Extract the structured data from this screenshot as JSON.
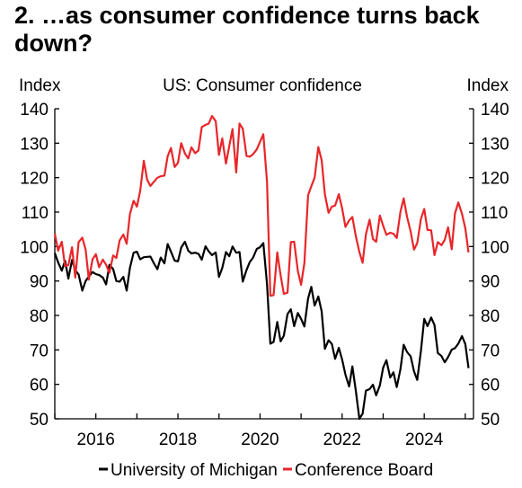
{
  "title": "2. …as consumer confidence turns back down?",
  "chart_data": {
    "type": "line",
    "title": "US: Consumer confidence",
    "ylabel_left": "Index",
    "ylabel_right": "Index",
    "xlim": [
      2015.0,
      2025.2
    ],
    "ylim": [
      50,
      140
    ],
    "yticks": [
      50,
      60,
      70,
      80,
      90,
      100,
      110,
      120,
      130,
      140
    ],
    "xticks": [
      2016,
      2018,
      2020,
      2022,
      2024
    ],
    "grid": false,
    "legend_position": "bottom",
    "series": [
      {
        "name": "University of Michigan",
        "color": "#000000",
        "points": [
          [
            2015.0,
            98.1
          ],
          [
            2015.08,
            95.4
          ],
          [
            2015.17,
            93.0
          ],
          [
            2015.25,
            95.9
          ],
          [
            2015.33,
            90.7
          ],
          [
            2015.42,
            96.1
          ],
          [
            2015.5,
            93.1
          ],
          [
            2015.58,
            91.9
          ],
          [
            2015.67,
            87.2
          ],
          [
            2015.75,
            90.0
          ],
          [
            2015.83,
            91.3
          ],
          [
            2015.92,
            92.6
          ],
          [
            2016.0,
            92.0
          ],
          [
            2016.08,
            91.7
          ],
          [
            2016.17,
            91.0
          ],
          [
            2016.25,
            89.0
          ],
          [
            2016.33,
            94.7
          ],
          [
            2016.42,
            93.5
          ],
          [
            2016.5,
            90.0
          ],
          [
            2016.58,
            89.8
          ],
          [
            2016.67,
            91.2
          ],
          [
            2016.75,
            87.2
          ],
          [
            2016.83,
            93.8
          ],
          [
            2016.92,
            98.2
          ],
          [
            2017.0,
            98.5
          ],
          [
            2017.08,
            96.3
          ],
          [
            2017.17,
            96.9
          ],
          [
            2017.25,
            97.0
          ],
          [
            2017.33,
            97.1
          ],
          [
            2017.42,
            95.0
          ],
          [
            2017.5,
            93.4
          ],
          [
            2017.58,
            96.8
          ],
          [
            2017.67,
            95.1
          ],
          [
            2017.75,
            100.7
          ],
          [
            2017.83,
            98.5
          ],
          [
            2017.92,
            95.9
          ],
          [
            2018.0,
            95.7
          ],
          [
            2018.08,
            99.7
          ],
          [
            2018.17,
            101.4
          ],
          [
            2018.25,
            98.8
          ],
          [
            2018.33,
            98.0
          ],
          [
            2018.42,
            98.2
          ],
          [
            2018.5,
            97.9
          ],
          [
            2018.58,
            96.2
          ],
          [
            2018.67,
            100.1
          ],
          [
            2018.75,
            98.6
          ],
          [
            2018.83,
            97.5
          ],
          [
            2018.92,
            98.3
          ],
          [
            2019.0,
            91.2
          ],
          [
            2019.08,
            93.8
          ],
          [
            2019.17,
            98.4
          ],
          [
            2019.25,
            97.2
          ],
          [
            2019.33,
            100.0
          ],
          [
            2019.42,
            98.2
          ],
          [
            2019.5,
            98.4
          ],
          [
            2019.58,
            89.8
          ],
          [
            2019.67,
            93.2
          ],
          [
            2019.75,
            95.5
          ],
          [
            2019.83,
            96.8
          ],
          [
            2019.92,
            99.3
          ],
          [
            2020.0,
            99.8
          ],
          [
            2020.08,
            101.0
          ],
          [
            2020.17,
            89.1
          ],
          [
            2020.25,
            71.8
          ],
          [
            2020.33,
            72.3
          ],
          [
            2020.42,
            78.1
          ],
          [
            2020.5,
            72.5
          ],
          [
            2020.58,
            74.1
          ],
          [
            2020.67,
            80.4
          ],
          [
            2020.75,
            81.8
          ],
          [
            2020.83,
            76.9
          ],
          [
            2020.92,
            80.7
          ],
          [
            2021.0,
            79.0
          ],
          [
            2021.08,
            76.8
          ],
          [
            2021.17,
            84.9
          ],
          [
            2021.25,
            88.3
          ],
          [
            2021.33,
            82.9
          ],
          [
            2021.42,
            85.5
          ],
          [
            2021.5,
            81.2
          ],
          [
            2021.58,
            70.3
          ],
          [
            2021.67,
            72.8
          ],
          [
            2021.75,
            71.7
          ],
          [
            2021.83,
            67.4
          ],
          [
            2021.92,
            70.6
          ],
          [
            2022.0,
            67.2
          ],
          [
            2022.08,
            62.8
          ],
          [
            2022.17,
            59.4
          ],
          [
            2022.25,
            65.2
          ],
          [
            2022.33,
            58.4
          ],
          [
            2022.42,
            50.0
          ],
          [
            2022.5,
            51.5
          ],
          [
            2022.58,
            58.2
          ],
          [
            2022.67,
            58.6
          ],
          [
            2022.75,
            59.9
          ],
          [
            2022.83,
            56.8
          ],
          [
            2022.92,
            59.7
          ],
          [
            2023.0,
            64.9
          ],
          [
            2023.08,
            67.0
          ],
          [
            2023.17,
            62.0
          ],
          [
            2023.25,
            63.5
          ],
          [
            2023.33,
            59.2
          ],
          [
            2023.42,
            64.4
          ],
          [
            2023.5,
            71.5
          ],
          [
            2023.58,
            69.4
          ],
          [
            2023.67,
            68.1
          ],
          [
            2023.75,
            63.8
          ],
          [
            2023.83,
            61.3
          ],
          [
            2023.92,
            69.7
          ],
          [
            2024.0,
            79.0
          ],
          [
            2024.08,
            76.9
          ],
          [
            2024.17,
            79.4
          ],
          [
            2024.25,
            77.2
          ],
          [
            2024.33,
            69.1
          ],
          [
            2024.42,
            68.2
          ],
          [
            2024.5,
            66.4
          ],
          [
            2024.58,
            67.9
          ],
          [
            2024.67,
            70.1
          ],
          [
            2024.75,
            70.5
          ],
          [
            2024.83,
            71.8
          ],
          [
            2024.92,
            74.0
          ],
          [
            2025.0,
            71.7
          ],
          [
            2025.08,
            64.7
          ]
        ]
      },
      {
        "name": "Conference Board",
        "color": "#e8262a",
        "points": [
          [
            2015.0,
            103.8
          ],
          [
            2015.08,
            98.8
          ],
          [
            2015.17,
            101.4
          ],
          [
            2015.25,
            94.3
          ],
          [
            2015.33,
            94.6
          ],
          [
            2015.42,
            99.8
          ],
          [
            2015.5,
            91.0
          ],
          [
            2015.58,
            101.3
          ],
          [
            2015.67,
            102.6
          ],
          [
            2015.75,
            99.1
          ],
          [
            2015.83,
            90.4
          ],
          [
            2015.92,
            96.3
          ],
          [
            2016.0,
            97.8
          ],
          [
            2016.08,
            94.0
          ],
          [
            2016.17,
            96.2
          ],
          [
            2016.25,
            94.7
          ],
          [
            2016.33,
            92.4
          ],
          [
            2016.42,
            97.4
          ],
          [
            2016.5,
            96.7
          ],
          [
            2016.58,
            101.8
          ],
          [
            2016.67,
            103.5
          ],
          [
            2016.75,
            100.8
          ],
          [
            2016.83,
            109.4
          ],
          [
            2016.92,
            113.3
          ],
          [
            2017.0,
            111.6
          ],
          [
            2017.08,
            116.1
          ],
          [
            2017.17,
            124.9
          ],
          [
            2017.25,
            119.4
          ],
          [
            2017.33,
            117.6
          ],
          [
            2017.42,
            118.9
          ],
          [
            2017.5,
            120.0
          ],
          [
            2017.58,
            120.4
          ],
          [
            2017.67,
            120.6
          ],
          [
            2017.75,
            126.2
          ],
          [
            2017.83,
            128.6
          ],
          [
            2017.92,
            123.1
          ],
          [
            2018.0,
            124.3
          ],
          [
            2018.08,
            130.0
          ],
          [
            2018.17,
            127.0
          ],
          [
            2018.25,
            125.6
          ],
          [
            2018.33,
            128.8
          ],
          [
            2018.42,
            127.1
          ],
          [
            2018.5,
            127.9
          ],
          [
            2018.58,
            134.7
          ],
          [
            2018.67,
            135.3
          ],
          [
            2018.75,
            135.7
          ],
          [
            2018.83,
            137.9
          ],
          [
            2018.92,
            136.4
          ],
          [
            2019.0,
            126.6
          ],
          [
            2019.08,
            131.4
          ],
          [
            2019.17,
            124.1
          ],
          [
            2019.25,
            129.2
          ],
          [
            2019.33,
            134.1
          ],
          [
            2019.42,
            121.5
          ],
          [
            2019.5,
            135.7
          ],
          [
            2019.58,
            134.2
          ],
          [
            2019.67,
            126.3
          ],
          [
            2019.75,
            126.1
          ],
          [
            2019.83,
            126.8
          ],
          [
            2019.92,
            128.2
          ],
          [
            2020.0,
            130.4
          ],
          [
            2020.08,
            132.6
          ],
          [
            2020.17,
            118.8
          ],
          [
            2020.25,
            85.7
          ],
          [
            2020.33,
            85.9
          ],
          [
            2020.42,
            98.3
          ],
          [
            2020.5,
            91.7
          ],
          [
            2020.58,
            86.3
          ],
          [
            2020.67,
            86.6
          ],
          [
            2020.75,
            101.3
          ],
          [
            2020.83,
            101.4
          ],
          [
            2020.92,
            92.9
          ],
          [
            2021.0,
            88.9
          ],
          [
            2021.08,
            95.2
          ],
          [
            2021.17,
            114.9
          ],
          [
            2021.25,
            117.5
          ],
          [
            2021.33,
            120.0
          ],
          [
            2021.42,
            128.9
          ],
          [
            2021.5,
            125.1
          ],
          [
            2021.58,
            115.2
          ],
          [
            2021.67,
            109.8
          ],
          [
            2021.75,
            111.6
          ],
          [
            2021.83,
            111.9
          ],
          [
            2021.92,
            115.2
          ],
          [
            2022.0,
            111.1
          ],
          [
            2022.08,
            105.7
          ],
          [
            2022.17,
            107.6
          ],
          [
            2022.25,
            108.6
          ],
          [
            2022.33,
            103.2
          ],
          [
            2022.42,
            98.4
          ],
          [
            2022.5,
            95.3
          ],
          [
            2022.58,
            103.6
          ],
          [
            2022.67,
            107.8
          ],
          [
            2022.75,
            102.2
          ],
          [
            2022.83,
            101.4
          ],
          [
            2022.92,
            109.0
          ],
          [
            2023.0,
            106.0
          ],
          [
            2023.08,
            103.4
          ],
          [
            2023.17,
            104.0
          ],
          [
            2023.25,
            103.7
          ],
          [
            2023.33,
            102.5
          ],
          [
            2023.42,
            110.1
          ],
          [
            2023.5,
            114.0
          ],
          [
            2023.58,
            108.7
          ],
          [
            2023.67,
            104.3
          ],
          [
            2023.75,
            99.1
          ],
          [
            2023.83,
            101.0
          ],
          [
            2023.92,
            108.0
          ],
          [
            2024.0,
            110.9
          ],
          [
            2024.08,
            104.8
          ],
          [
            2024.17,
            104.7
          ],
          [
            2024.25,
            97.5
          ],
          [
            2024.33,
            101.3
          ],
          [
            2024.42,
            100.4
          ],
          [
            2024.5,
            101.9
          ],
          [
            2024.58,
            105.6
          ],
          [
            2024.67,
            99.2
          ],
          [
            2024.75,
            109.6
          ],
          [
            2024.83,
            112.8
          ],
          [
            2024.92,
            109.5
          ],
          [
            2025.0,
            105.3
          ],
          [
            2025.08,
            98.3
          ]
        ]
      }
    ]
  }
}
